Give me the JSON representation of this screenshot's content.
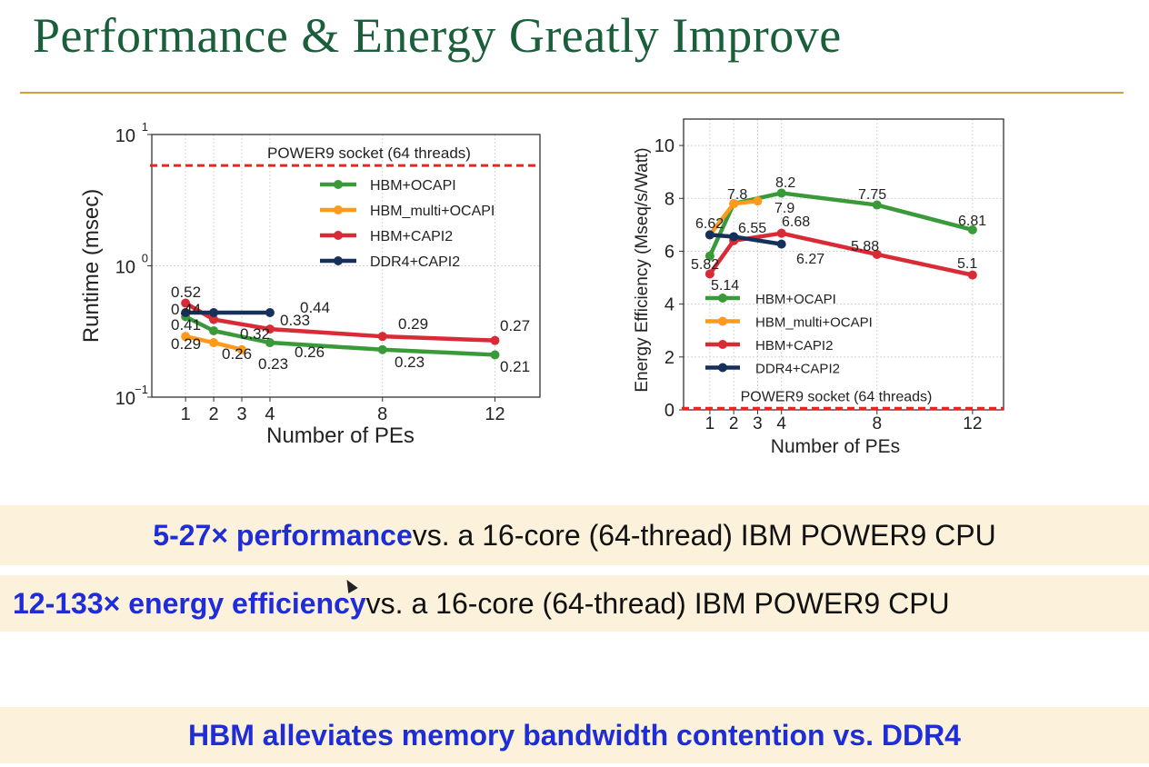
{
  "slide": {
    "title": "Performance & Energy Greatly Improve",
    "bands": [
      {
        "highlight": "5-27× performance",
        "rest": " vs. a 16-core (64-thread) IBM POWER9 CPU"
      },
      {
        "highlight": "12-133× energy efficiency",
        "rest": " vs. a 16-core (64-thread) IBM POWER9 CPU"
      },
      {
        "highlight": "HBM alleviates memory bandwidth contention vs. DDR4",
        "rest": ""
      }
    ]
  },
  "colors": {
    "hbm_ocapi": "#3a9a3a",
    "hbm_multi_ocapi": "#ff9a1a",
    "hbm_capi2": "#d92b35",
    "ddr4_capi2": "#16305c",
    "baseline": "#e5281e",
    "title": "#1b5e3b",
    "rule": "#c9a33a",
    "highlight": "#1f2dd8"
  },
  "chart_data": [
    {
      "type": "line",
      "ylabel": "Runtime (msec)",
      "xlabel": "Number of PEs",
      "yscale": "log",
      "ylim": [
        0.1,
        10
      ],
      "ytick_labels": [
        {
          "value": 10,
          "base": "10",
          "exp": "1"
        },
        {
          "value": 1,
          "base": "10",
          "exp": "0"
        },
        {
          "value": 0.1,
          "base": "10",
          "exp": "−1"
        }
      ],
      "xlim": [
        -0.2,
        13.6
      ],
      "xticks": [
        1,
        2,
        3,
        4,
        8,
        12
      ],
      "xtick_labels": [
        "1",
        "2",
        "3",
        "4",
        "8",
        "12"
      ],
      "grid": true,
      "legend_position": "upper-right",
      "baseline": {
        "label": "POWER9 socket (64 threads)",
        "value": 5.8
      },
      "series": [
        {
          "name": "HBM+OCAPI",
          "x": [
            1,
            2,
            4,
            8,
            12
          ],
          "y": [
            0.41,
            0.32,
            0.26,
            0.23,
            0.21
          ],
          "labels": [
            "0.41",
            "0.32",
            "0.26",
            "0.23",
            "0.21"
          ]
        },
        {
          "name": "HBM_multi+OCAPI",
          "x": [
            1,
            2,
            3
          ],
          "y": [
            0.29,
            0.26,
            0.23
          ],
          "labels": [
            "0.29",
            "0.26",
            "0.23"
          ]
        },
        {
          "name": "HBM+CAPI2",
          "x": [
            1,
            2,
            4,
            8,
            12
          ],
          "y": [
            0.52,
            0.39,
            0.33,
            0.29,
            0.27
          ],
          "labels": [
            "0.52",
            "",
            "0.33",
            "0.29",
            "0.27"
          ]
        },
        {
          "name": "DDR4+CAPI2",
          "x": [
            1,
            2,
            4
          ],
          "y": [
            0.44,
            0.44,
            0.44
          ],
          "labels": [
            "0.44",
            "",
            "0.44"
          ]
        }
      ]
    },
    {
      "type": "line",
      "ylabel": "Energy Efficiency (Mseq/s/Watt)",
      "xlabel": "Number of PEs",
      "yscale": "linear",
      "ylim": [
        0,
        11
      ],
      "yticks": [
        0,
        2,
        4,
        6,
        8,
        10
      ],
      "ytick_labels": [
        "0",
        "2",
        "4",
        "6",
        "8",
        "10"
      ],
      "xlim": [
        -0.1,
        13.3
      ],
      "xticks": [
        1,
        2,
        3,
        4,
        8,
        12
      ],
      "xtick_labels": [
        "1",
        "2",
        "3",
        "4",
        "8",
        "12"
      ],
      "grid": true,
      "legend_position": "lower-left",
      "baseline": {
        "label": "POWER9 socket (64 threads)",
        "value": 0.05
      },
      "series": [
        {
          "name": "HBM+OCAPI",
          "x": [
            1,
            2,
            4,
            8,
            12
          ],
          "y": [
            5.82,
            7.8,
            8.2,
            7.75,
            6.81
          ],
          "labels": [
            "5.82",
            "",
            "8.2",
            "7.75",
            "6.81"
          ]
        },
        {
          "name": "HBM_multi+OCAPI",
          "x": [
            1,
            2,
            3
          ],
          "y": [
            6.62,
            7.8,
            7.9
          ],
          "labels": [
            "6.62",
            "7.8",
            "7.9"
          ]
        },
        {
          "name": "HBM+CAPI2",
          "x": [
            1,
            2,
            4,
            8,
            12
          ],
          "y": [
            5.14,
            6.4,
            6.68,
            5.88,
            5.1
          ],
          "labels": [
            "5.14",
            "",
            "6.68",
            "5.88",
            "5.1"
          ]
        },
        {
          "name": "DDR4+CAPI2",
          "x": [
            1,
            2,
            4
          ],
          "y": [
            6.62,
            6.55,
            6.27
          ],
          "labels": [
            "",
            "6.55",
            "6.27"
          ]
        }
      ]
    }
  ]
}
